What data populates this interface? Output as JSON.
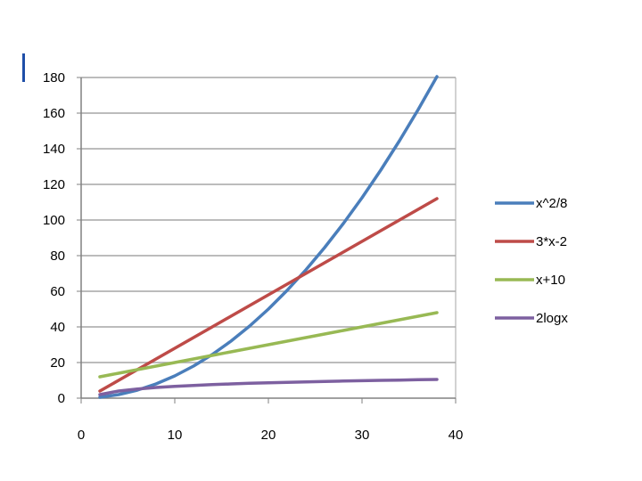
{
  "chart_data": {
    "type": "line",
    "title": "",
    "xlabel": "",
    "ylabel": "",
    "xlim": [
      0,
      40
    ],
    "ylim": [
      0,
      180
    ],
    "x_ticks": [
      0,
      10,
      20,
      30,
      40
    ],
    "y_ticks": [
      0,
      20,
      40,
      60,
      80,
      100,
      120,
      140,
      160,
      180
    ],
    "grid": "horizontal",
    "legend_position": "right",
    "x": [
      2,
      4,
      6,
      8,
      10,
      12,
      14,
      16,
      18,
      20,
      22,
      24,
      26,
      28,
      30,
      32,
      34,
      36,
      38
    ],
    "series": [
      {
        "name": "x^2/8",
        "color": "#4a7ebb",
        "values": [
          0.5,
          2,
          4.5,
          8,
          12.5,
          18,
          24.5,
          32,
          40.5,
          50,
          60.5,
          72,
          84.5,
          98,
          112.5,
          128,
          144.5,
          162,
          180.5
        ]
      },
      {
        "name": "3*x-2",
        "color": "#be4b48",
        "values": [
          4,
          10,
          16,
          22,
          28,
          34,
          40,
          46,
          52,
          58,
          64,
          70,
          76,
          82,
          88,
          94,
          100,
          106,
          112
        ]
      },
      {
        "name": "x+10",
        "color": "#98b954",
        "values": [
          12,
          14,
          16,
          18,
          20,
          22,
          24,
          26,
          28,
          30,
          32,
          34,
          36,
          38,
          40,
          42,
          44,
          46,
          48
        ]
      },
      {
        "name": "2logx",
        "color": "#7d60a0",
        "values": [
          2,
          4,
          5.17,
          6,
          6.64,
          7.17,
          7.61,
          8,
          8.34,
          8.64,
          8.92,
          9.17,
          9.4,
          9.61,
          9.81,
          10,
          10.17,
          10.34,
          10.49
        ]
      }
    ]
  }
}
